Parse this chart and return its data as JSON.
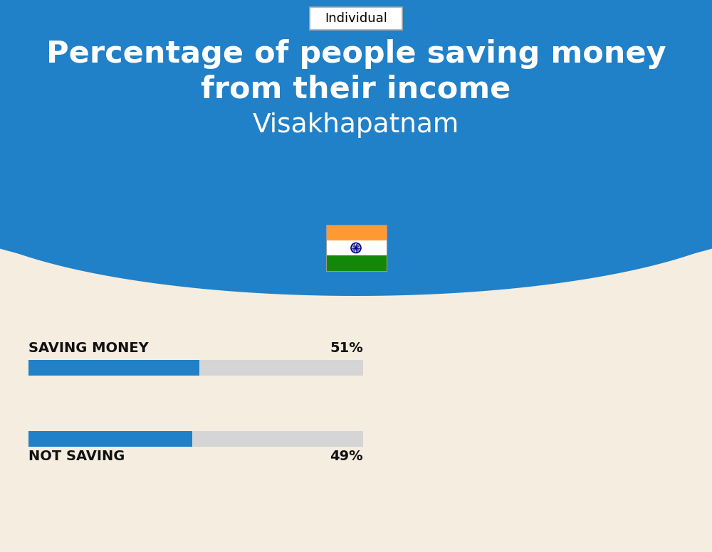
{
  "title_line1": "Percentage of people saving money",
  "title_line2": "from their income",
  "subtitle": "Visakhapatnam",
  "tab_label": "Individual",
  "bg_top_color": "#2080C8",
  "bg_bottom_color": "#F5EDE0",
  "bar1_label": "SAVING MONEY",
  "bar1_value": 51,
  "bar1_pct": "51%",
  "bar2_label": "NOT SAVING",
  "bar2_value": 49,
  "bar2_pct": "49%",
  "bar_fill_color": "#2080C8",
  "bar_bg_color": "#D5D5D5",
  "bar_total": 100,
  "title_color": "#FFFFFF",
  "subtitle_color": "#FFFFFF",
  "label_color": "#111111",
  "pct_color": "#111111",
  "tab_border_color": "#AAAAAA",
  "flag_orange": "#FF9933",
  "flag_green": "#138808",
  "flag_chakra": "#000080"
}
